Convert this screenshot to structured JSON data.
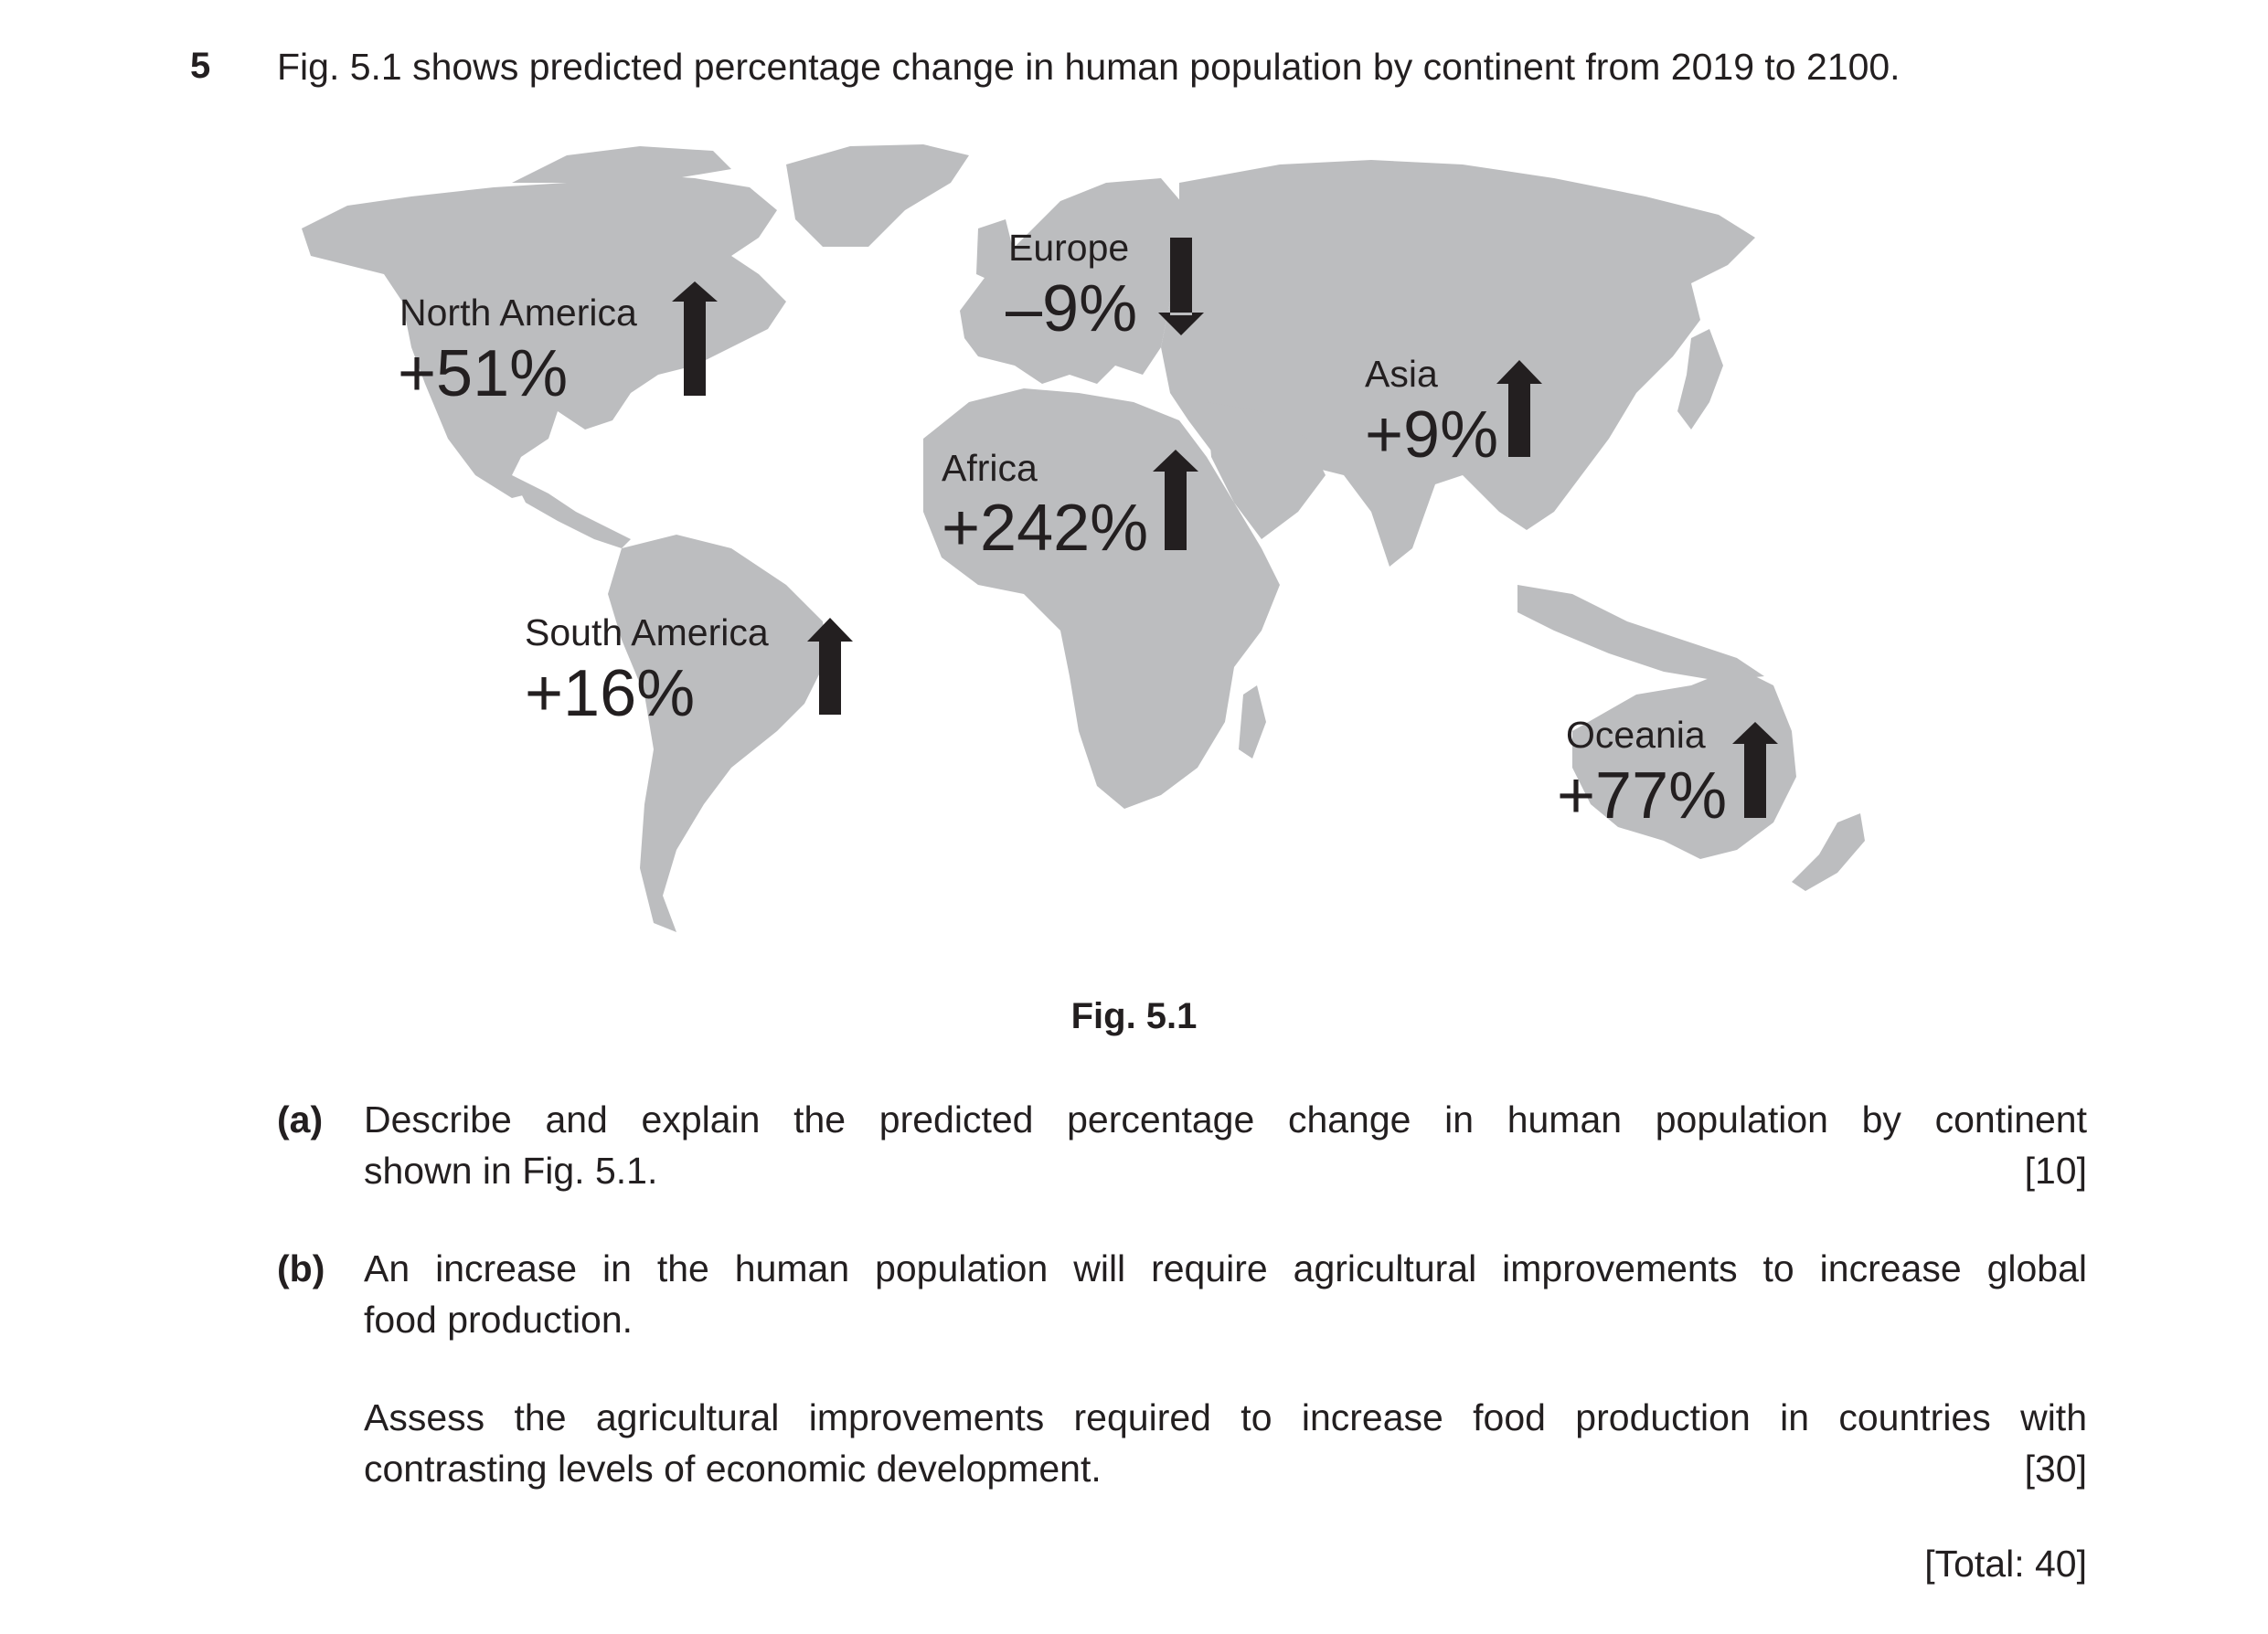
{
  "question": {
    "number": "5",
    "intro": "Fig. 5.1 shows predicted percentage change in human population by continent from 2019 to 2100."
  },
  "figure": {
    "caption": "Fig. 5.1",
    "land_color": "#bcbdbf",
    "arrow_color": "#231f20",
    "continents": [
      {
        "name": "North America",
        "change": "+51%",
        "direction": "up"
      },
      {
        "name": "Europe",
        "change": "–9%",
        "direction": "down"
      },
      {
        "name": "Asia",
        "change": "+9%",
        "direction": "up"
      },
      {
        "name": "Africa",
        "change": "+242%",
        "direction": "up"
      },
      {
        "name": "South America",
        "change": "+16%",
        "direction": "up"
      },
      {
        "name": "Oceania",
        "change": "+77%",
        "direction": "up"
      }
    ]
  },
  "parts": [
    {
      "label": "(a)",
      "lines": [
        "Describe and explain the predicted percentage change in human population by continent",
        "shown in Fig. 5.1."
      ],
      "marks": "[10]"
    },
    {
      "label": "(b)",
      "lines": [
        "An increase in the human population will require agricultural improvements to increase global",
        "food production.",
        "Assess the agricultural improvements required to increase food production in countries with",
        "contrasting levels of economic development."
      ],
      "marks": "[30]"
    }
  ],
  "total": "[Total: 40]"
}
